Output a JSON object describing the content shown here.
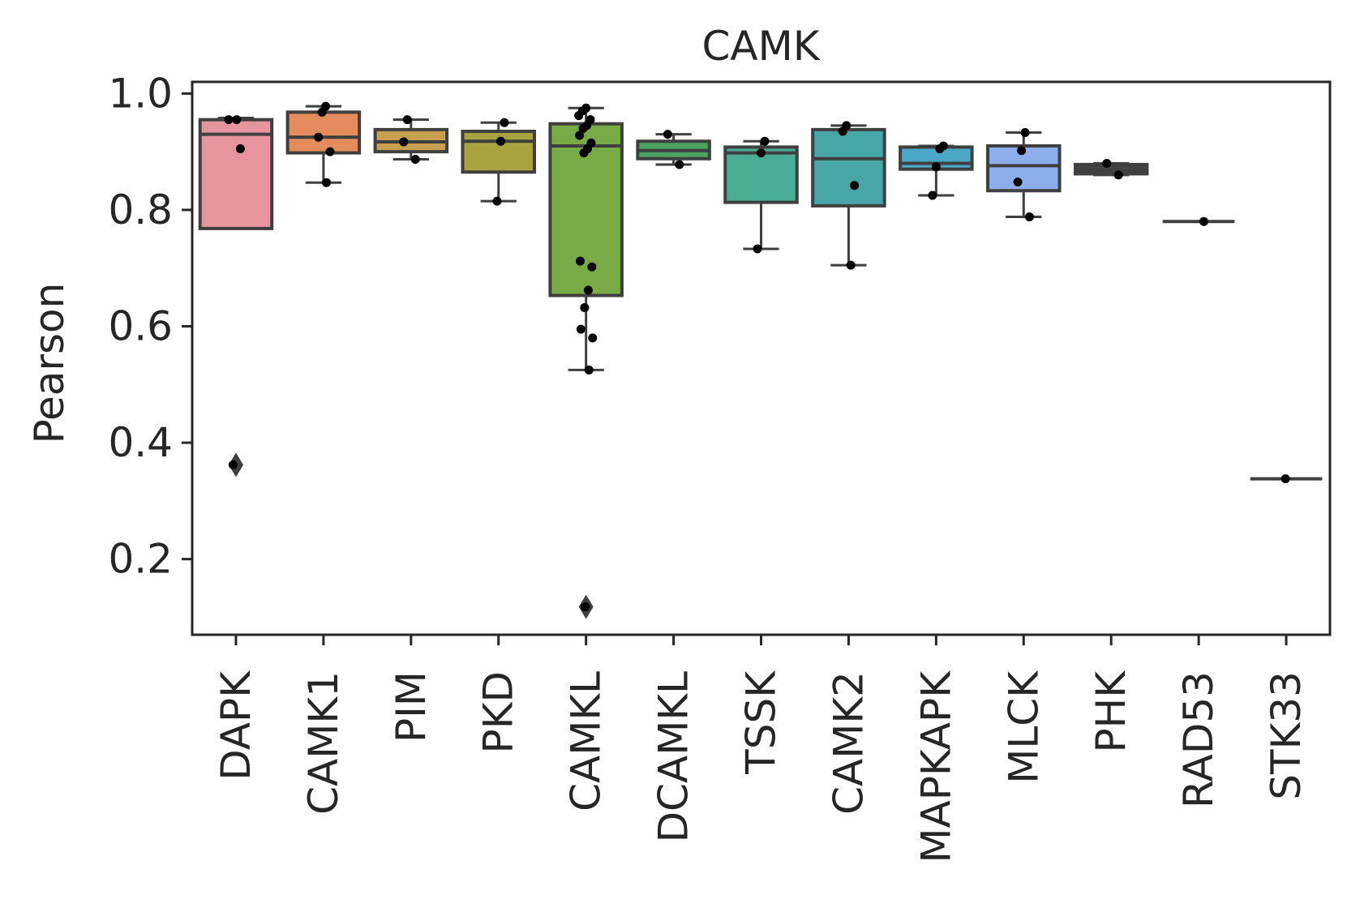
{
  "chart_data": {
    "type": "box",
    "title": "CAMK",
    "xlabel": "",
    "ylabel": "Pearson",
    "ylim": [
      0.07,
      1.02
    ],
    "yticks": [
      0.2,
      0.4,
      0.6,
      0.8,
      1.0
    ],
    "ytick_labels": [
      "0.2",
      "0.4",
      "0.6",
      "0.8",
      "1.0"
    ],
    "grid": false,
    "categories": [
      "DAPK",
      "CAMK1",
      "PIM",
      "PKD",
      "CAMKL",
      "DCAMKL",
      "TSSK",
      "CAMK2",
      "MAPKAPK",
      "MLCK",
      "PHK",
      "RAD53",
      "STK33"
    ],
    "colors": [
      "#e8949f",
      "#e58c5c",
      "#c9a04f",
      "#a8a23f",
      "#78ab46",
      "#49a462",
      "#49ac93",
      "#47a7a6",
      "#4aa8c6",
      "#8caeea",
      "#444444",
      "#444444",
      "#444444"
    ],
    "series": [
      {
        "q1": 0.768,
        "median": 0.93,
        "q3": 0.955,
        "whisker_low": 0.768,
        "whisker_high": 0.958,
        "fliers": [
          0.362
        ],
        "points": [
          0.955,
          0.905,
          0.955,
          0.362
        ]
      },
      {
        "q1": 0.898,
        "median": 0.925,
        "q3": 0.968,
        "whisker_low": 0.847,
        "whisker_high": 0.978,
        "fliers": [],
        "points": [
          0.978,
          0.968,
          0.925,
          0.9,
          0.847
        ]
      },
      {
        "q1": 0.9,
        "median": 0.917,
        "q3": 0.938,
        "whisker_low": 0.887,
        "whisker_high": 0.955,
        "fliers": [],
        "points": [
          0.955,
          0.917,
          0.887
        ]
      },
      {
        "q1": 0.865,
        "median": 0.918,
        "q3": 0.935,
        "whisker_low": 0.815,
        "whisker_high": 0.95,
        "fliers": [],
        "points": [
          0.95,
          0.918,
          0.815
        ]
      },
      {
        "q1": 0.653,
        "median": 0.91,
        "q3": 0.948,
        "whisker_low": 0.525,
        "whisker_high": 0.975,
        "fliers": [
          0.118
        ],
        "points": [
          0.975,
          0.97,
          0.962,
          0.955,
          0.945,
          0.94,
          0.928,
          0.915,
          0.905,
          0.898,
          0.712,
          0.702,
          0.662,
          0.632,
          0.595,
          0.58,
          0.525,
          0.118
        ]
      },
      {
        "q1": 0.888,
        "median": 0.902,
        "q3": 0.918,
        "whisker_low": 0.878,
        "whisker_high": 0.93,
        "fliers": [],
        "points": [
          0.93,
          0.878
        ]
      },
      {
        "q1": 0.813,
        "median": 0.898,
        "q3": 0.908,
        "whisker_low": 0.733,
        "whisker_high": 0.918,
        "fliers": [],
        "points": [
          0.918,
          0.898,
          0.733
        ]
      },
      {
        "q1": 0.807,
        "median": 0.888,
        "q3": 0.938,
        "whisker_low": 0.705,
        "whisker_high": 0.945,
        "fliers": [],
        "points": [
          0.945,
          0.935,
          0.842,
          0.705
        ]
      },
      {
        "q1": 0.87,
        "median": 0.88,
        "q3": 0.908,
        "whisker_low": 0.825,
        "whisker_high": 0.91,
        "fliers": [],
        "points": [
          0.91,
          0.905,
          0.874,
          0.825
        ]
      },
      {
        "q1": 0.833,
        "median": 0.876,
        "q3": 0.91,
        "whisker_low": 0.788,
        "whisker_high": 0.933,
        "fliers": [],
        "points": [
          0.933,
          0.902,
          0.848,
          0.788
        ]
      },
      {
        "q1": 0.862,
        "median": 0.868,
        "q3": 0.878,
        "whisker_low": 0.86,
        "whisker_high": 0.88,
        "fliers": [],
        "points": [
          0.88,
          0.86
        ]
      },
      {
        "q1": 0.78,
        "median": 0.78,
        "q3": 0.78,
        "whisker_low": 0.78,
        "whisker_high": 0.78,
        "fliers": [],
        "points": [
          0.78
        ]
      },
      {
        "q1": 0.338,
        "median": 0.338,
        "q3": 0.338,
        "whisker_low": 0.338,
        "whisker_high": 0.338,
        "fliers": [],
        "points": [
          0.338
        ]
      }
    ]
  }
}
